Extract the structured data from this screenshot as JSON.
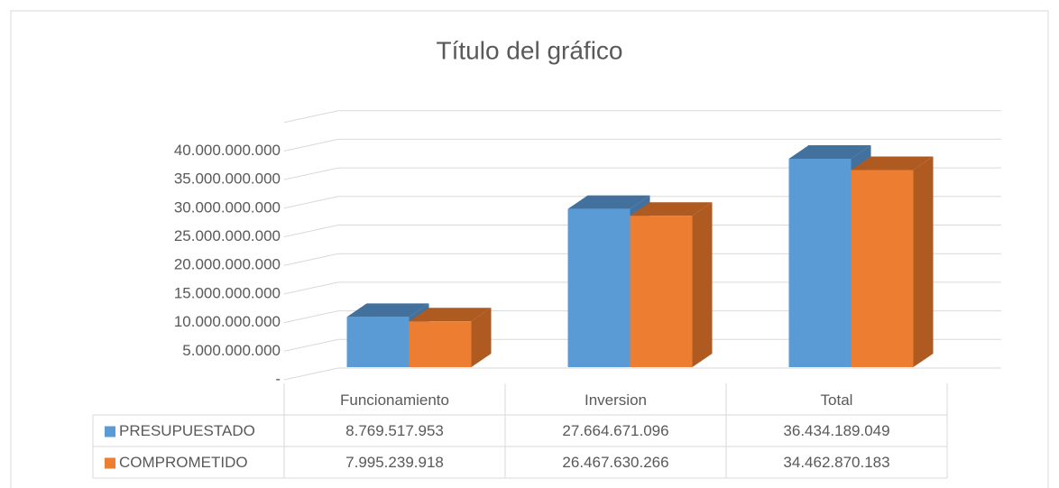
{
  "chart_data": {
    "type": "bar3d",
    "title": "Título del gráfico",
    "categories": [
      "Funcionamiento",
      "Inversion",
      "Total"
    ],
    "series": [
      {
        "name": "PRESUPUESTADO",
        "color": "#5b9bd5",
        "values": [
          8769517953,
          27664671096,
          36434189049
        ],
        "value_labels": [
          "8.769.517.953",
          "27.664.671.096",
          "36.434.189.049"
        ]
      },
      {
        "name": "COMPROMETIDO",
        "color": "#ed7d31",
        "values": [
          7995239918,
          26467630266,
          34462870183
        ],
        "value_labels": [
          "7.995.239.918",
          "26.467.630.266",
          "34.462.870.183"
        ]
      }
    ],
    "ylim": [
      0,
      45000000000
    ],
    "yticks": [
      {
        "value": 0,
        "label": "-"
      },
      {
        "value": 5000000000,
        "label": "5.000.000.000"
      },
      {
        "value": 10000000000,
        "label": "10.000.000.000"
      },
      {
        "value": 15000000000,
        "label": "15.000.000.000"
      },
      {
        "value": 20000000000,
        "label": "20.000.000.000"
      },
      {
        "value": 25000000000,
        "label": "25.000.000.000"
      },
      {
        "value": 30000000000,
        "label": "30.000.000.000"
      },
      {
        "value": 35000000000,
        "label": "35.000.000.000"
      },
      {
        "value": 40000000000,
        "label": "40.000.000.000"
      }
    ],
    "grid": true
  }
}
